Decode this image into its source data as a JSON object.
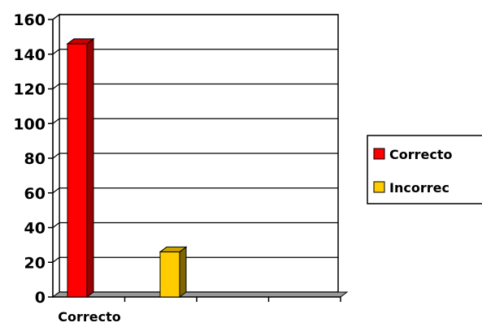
{
  "chart_data": {
    "type": "bar",
    "categories": [
      "Correcto"
    ],
    "series": [
      {
        "name": "Correcto",
        "values": [
          146
        ],
        "color": "#ff0000",
        "side_color": "#990000",
        "top_color": "#cc0000"
      },
      {
        "name": "Incorrec",
        "values": [
          26
        ],
        "color": "#ffcc00",
        "side_color": "#806600",
        "top_color": "#cca300"
      }
    ],
    "title": "",
    "xlabel": "",
    "ylabel": "",
    "ylim": [
      0,
      160
    ],
    "yticks": [
      0,
      20,
      40,
      60,
      80,
      100,
      120,
      140,
      160
    ],
    "grid": true,
    "legend_position": "right",
    "three_d": true
  }
}
